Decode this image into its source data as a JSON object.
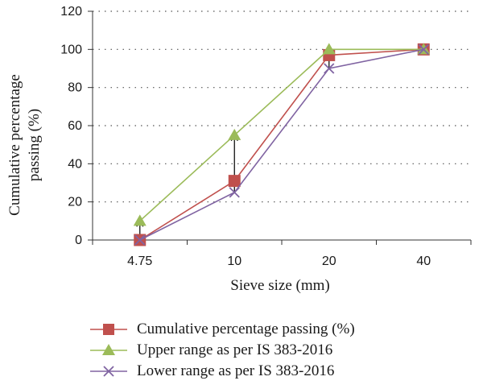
{
  "chart_data": {
    "type": "line",
    "categories": [
      "4.75",
      "10",
      "20",
      "40"
    ],
    "series": [
      {
        "name": "Cumulative percentage passing (%)",
        "values": [
          0,
          31,
          97,
          100
        ],
        "color": "#c0504d",
        "marker": "square"
      },
      {
        "name": "Upper range as per IS 383-2016",
        "values": [
          10,
          55,
          100,
          100
        ],
        "color": "#9bbb59",
        "marker": "triangle"
      },
      {
        "name": "Lower range as per IS 383-2016",
        "values": [
          0,
          25,
          90,
          100
        ],
        "color": "#8064a2",
        "marker": "x"
      }
    ],
    "error_bars": [
      {
        "category": "4.75",
        "low": 0,
        "high": 10
      },
      {
        "category": "10",
        "low": 25,
        "high": 55
      },
      {
        "category": "20",
        "low": 90,
        "high": 100
      },
      {
        "category": "40",
        "low": 100,
        "high": 100
      }
    ],
    "xlabel": "Sieve size (mm)",
    "ylabel_lines": [
      "Cumulative percentage",
      "passing (%)"
    ],
    "ylim": [
      0,
      120
    ],
    "yticks": [
      0,
      20,
      40,
      60,
      80,
      100,
      120
    ],
    "grid": "horizontal-dotted",
    "legend_position": "bottom"
  }
}
